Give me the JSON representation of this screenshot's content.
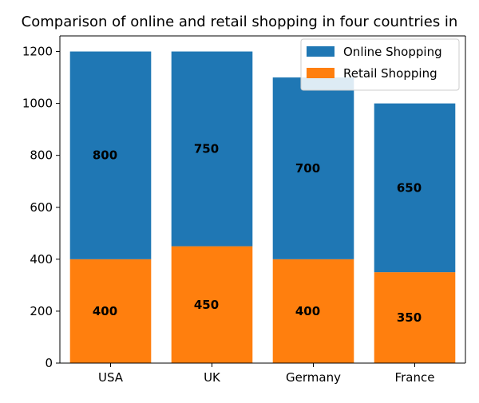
{
  "chart_data": {
    "type": "bar",
    "stacked": true,
    "title": "Comparison of online and retail shopping in four countries in",
    "xlabel": "",
    "ylabel": "",
    "categories": [
      "USA",
      "UK",
      "Germany",
      "France"
    ],
    "series": [
      {
        "name": "Retail Shopping",
        "values": [
          400,
          450,
          400,
          350
        ],
        "color": "#ff7f0e"
      },
      {
        "name": "Online Shopping",
        "values": [
          800,
          750,
          700,
          650
        ],
        "color": "#1f77b4"
      }
    ],
    "ylim": [
      0,
      1260
    ],
    "yticks": [
      0,
      200,
      400,
      600,
      800,
      1000,
      1200
    ],
    "grid": false,
    "legend": {
      "position": "top-right",
      "entries": [
        {
          "label": "Online Shopping",
          "color": "#1f77b4"
        },
        {
          "label": "Retail Shopping",
          "color": "#ff7f0e"
        }
      ]
    }
  }
}
